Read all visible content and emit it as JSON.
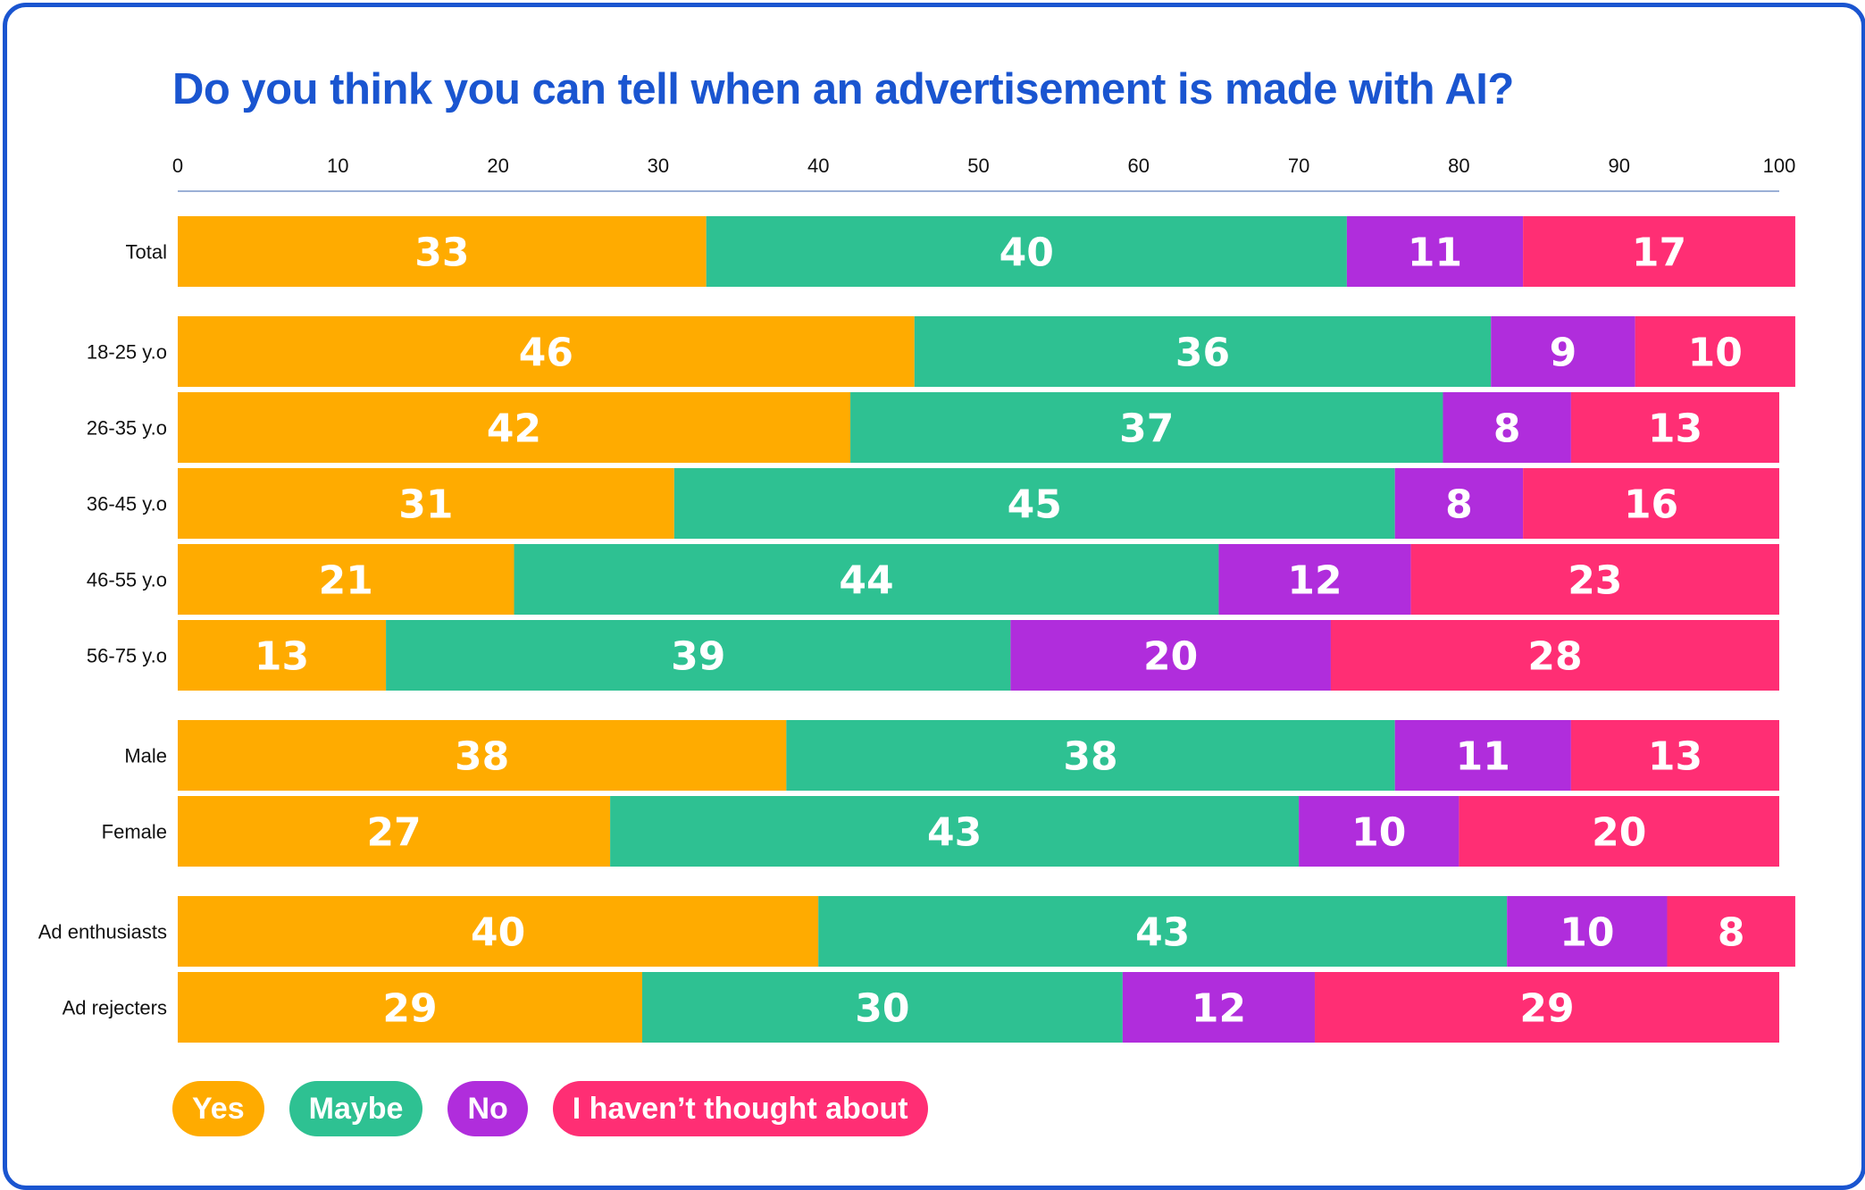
{
  "chart_data": {
    "type": "bar",
    "orientation": "horizontal",
    "stacked": true,
    "title": "Do you think you can tell when an advertisement is made with AI?",
    "xlim": [
      0,
      100
    ],
    "xticks": [
      0,
      10,
      20,
      30,
      40,
      50,
      60,
      70,
      80,
      90,
      100
    ],
    "categories": [
      "Total",
      "18-25 y.o",
      "26-35 y.o",
      "36-45 y.o",
      "46-55 y.o",
      "56-75 y.o",
      "Male",
      "Female",
      "Ad enthusiasts",
      "Ad rejecters"
    ],
    "groups": [
      [
        "Total"
      ],
      [
        "18-25 y.o",
        "26-35 y.o",
        "36-45 y.o",
        "46-55 y.o",
        "56-75 y.o"
      ],
      [
        "Male",
        "Female"
      ],
      [
        "Ad enthusiasts",
        "Ad rejecters"
      ]
    ],
    "series": [
      {
        "name": "Yes",
        "color": "#ffab00",
        "values": [
          33,
          46,
          42,
          31,
          21,
          13,
          38,
          27,
          40,
          29
        ]
      },
      {
        "name": "Maybe",
        "color": "#2ec192",
        "values": [
          40,
          36,
          37,
          45,
          44,
          39,
          38,
          43,
          43,
          30
        ]
      },
      {
        "name": "No",
        "color": "#b02ddc",
        "values": [
          11,
          9,
          8,
          8,
          12,
          20,
          11,
          10,
          10,
          12
        ]
      },
      {
        "name": "I haven’t thought about",
        "color": "#ff2e74",
        "values": [
          17,
          10,
          13,
          16,
          23,
          28,
          13,
          20,
          8,
          29
        ]
      }
    ],
    "legend": {
      "position": "bottom-left",
      "style": "pills"
    },
    "axis_color": "#9bb0d6"
  },
  "legend_labels": [
    "Yes",
    "Maybe",
    "No",
    "I haven’t thought about"
  ]
}
